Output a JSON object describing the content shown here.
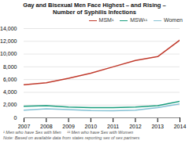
{
  "chart_data": {
    "type": "line",
    "title": "Gay and Bisexual Men Face Highest – and Rising –",
    "subtitle": "Number of Syphilis Infections",
    "x": [
      2007,
      2008,
      2009,
      2010,
      2011,
      2012,
      2013,
      2014
    ],
    "series": [
      {
        "name": "MSM¹",
        "color": "#c0392b",
        "values": [
          5200,
          5500,
          6200,
          7000,
          8000,
          9000,
          9600,
          12200
        ]
      },
      {
        "name": "MSW¹¹",
        "color": "#1a9e7e",
        "values": [
          1800,
          1900,
          1700,
          1600,
          1600,
          1700,
          1900,
          2600
        ]
      },
      {
        "name": "Women",
        "color": "#85c1d4",
        "values": [
          1200,
          1400,
          1300,
          1150,
          1100,
          1200,
          1600,
          2200
        ]
      }
    ],
    "xlim": [
      2007,
      2014
    ],
    "xticks": [
      2007,
      2008,
      2009,
      2010,
      2011,
      2012,
      2013,
      2014
    ],
    "ylim": [
      0,
      14000
    ],
    "yticks": [
      0,
      {
        "value": 2000,
        "label": "2,000"
      },
      {
        "value": 4000,
        "label": "4,000"
      },
      {
        "value": 6000,
        "label": "6,000"
      },
      {
        "value": 8000,
        "label": "8,000"
      },
      {
        "value": 10000,
        "label": "10,000"
      },
      {
        "value": 12000,
        "label": "12,000"
      },
      {
        "value": 14000,
        "label": "14,000"
      }
    ],
    "grid": true,
    "legend": "upper right",
    "annotations": [
      "¹ Men who have Sex with Men     ¹¹ Men who have Sex with Women",
      "Note: Based on available data from states reporting sex of sex partners"
    ]
  }
}
